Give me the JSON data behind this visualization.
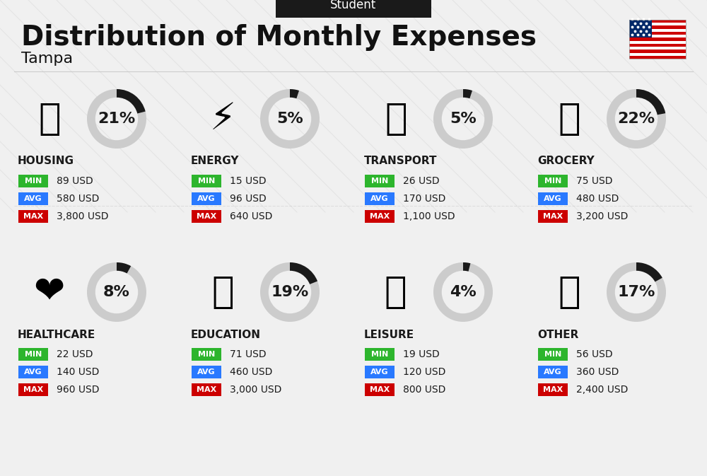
{
  "title": "Distribution of Monthly Expenses",
  "subtitle": "Student",
  "location": "Tampa",
  "background_color": "#f0f0f0",
  "header_bg": "#1a1a1a",
  "categories": [
    {
      "name": "HOUSING",
      "percent": 21,
      "min_val": "89 USD",
      "avg_val": "580 USD",
      "max_val": "3,800 USD",
      "row": 0,
      "col": 0
    },
    {
      "name": "ENERGY",
      "percent": 5,
      "min_val": "15 USD",
      "avg_val": "96 USD",
      "max_val": "640 USD",
      "row": 0,
      "col": 1
    },
    {
      "name": "TRANSPORT",
      "percent": 5,
      "min_val": "26 USD",
      "avg_val": "170 USD",
      "max_val": "1,100 USD",
      "row": 0,
      "col": 2
    },
    {
      "name": "GROCERY",
      "percent": 22,
      "min_val": "75 USD",
      "avg_val": "480 USD",
      "max_val": "3,200 USD",
      "row": 0,
      "col": 3
    },
    {
      "name": "HEALTHCARE",
      "percent": 8,
      "min_val": "22 USD",
      "avg_val": "140 USD",
      "max_val": "960 USD",
      "row": 1,
      "col": 0
    },
    {
      "name": "EDUCATION",
      "percent": 19,
      "min_val": "71 USD",
      "avg_val": "460 USD",
      "max_val": "3,000 USD",
      "row": 1,
      "col": 1
    },
    {
      "name": "LEISURE",
      "percent": 4,
      "min_val": "19 USD",
      "avg_val": "120 USD",
      "max_val": "800 USD",
      "row": 1,
      "col": 2
    },
    {
      "name": "OTHER",
      "percent": 17,
      "min_val": "56 USD",
      "avg_val": "360 USD",
      "max_val": "2,400 USD",
      "row": 1,
      "col": 3
    }
  ],
  "min_color": "#2db52d",
  "avg_color": "#2979ff",
  "max_color": "#cc0000",
  "label_color": "#ffffff",
  "ring_filled_color": "#1a1a1a",
  "ring_empty_color": "#cccccc",
  "category_name_color": "#1a1a1a",
  "value_text_color": "#1a1a1a"
}
